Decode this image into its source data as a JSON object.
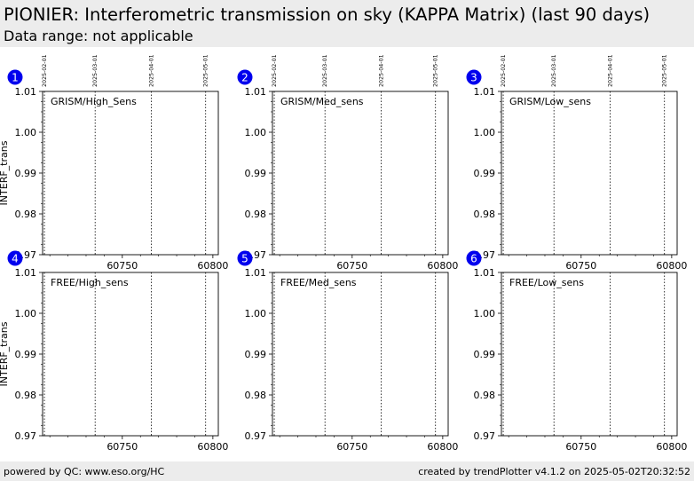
{
  "header": {
    "title": "PIONIER: Interferometric transmission on sky (KAPPA Matrix) (last 90 days)",
    "subtitle": "Data range: not applicable"
  },
  "footer": {
    "left": "powered by QC: www.eso.org/HC",
    "right": "created by trendPlotter v4.1.2 on 2025-05-02T20:32:52"
  },
  "colors": {
    "badge": "#0000ee",
    "header_bg": "#ececec",
    "date_line": "#000000"
  },
  "chart_data": [
    {
      "type": "scatter",
      "number": "1",
      "label": "GRISM/High_Sens",
      "ylabel": "INTERF_trans",
      "xlim": [
        60706,
        60803
      ],
      "ylim": [
        0.97,
        1.01
      ],
      "xticks": [
        60750,
        60800
      ],
      "yticks": [
        0.97,
        0.98,
        0.99,
        1.0,
        1.01
      ],
      "ytick_labels": [
        "0.97",
        "0.98",
        "0.99",
        "1.00",
        "1.01"
      ],
      "date_lines": [
        {
          "x": 60707,
          "label": "2025-02-01"
        },
        {
          "x": 60735,
          "label": "2025-03-01"
        },
        {
          "x": 60766,
          "label": "2025-04-01"
        },
        {
          "x": 60796,
          "label": "2025-05-01"
        }
      ],
      "series": []
    },
    {
      "type": "scatter",
      "number": "2",
      "label": "GRISM/Med_sens",
      "ylabel": "",
      "xlim": [
        60706,
        60803
      ],
      "ylim": [
        0.97,
        1.01
      ],
      "xticks": [
        60750,
        60800
      ],
      "yticks": [
        0.97,
        0.98,
        0.99,
        1.0,
        1.01
      ],
      "ytick_labels": [
        "0.97",
        "0.98",
        "0.99",
        "1.00",
        "1.01"
      ],
      "date_lines": [
        {
          "x": 60707,
          "label": "2025-02-01"
        },
        {
          "x": 60735,
          "label": "2025-03-01"
        },
        {
          "x": 60766,
          "label": "2025-04-01"
        },
        {
          "x": 60796,
          "label": "2025-05-01"
        }
      ],
      "series": []
    },
    {
      "type": "scatter",
      "number": "3",
      "label": "GRISM/Low_sens",
      "ylabel": "",
      "xlim": [
        60706,
        60803
      ],
      "ylim": [
        0.97,
        1.01
      ],
      "xticks": [
        60750,
        60800
      ],
      "yticks": [
        0.97,
        0.98,
        0.99,
        1.0,
        1.01
      ],
      "ytick_labels": [
        "0.97",
        "0.98",
        "0.99",
        "1.00",
        "1.01"
      ],
      "date_lines": [
        {
          "x": 60707,
          "label": "2025-02-01"
        },
        {
          "x": 60735,
          "label": "2025-03-01"
        },
        {
          "x": 60766,
          "label": "2025-04-01"
        },
        {
          "x": 60796,
          "label": "2025-05-01"
        }
      ],
      "series": []
    },
    {
      "type": "scatter",
      "number": "4",
      "label": "FREE/High_sens",
      "ylabel": "INTERF_trans",
      "xlim": [
        60706,
        60803
      ],
      "ylim": [
        0.97,
        1.01
      ],
      "xticks": [
        60750,
        60800
      ],
      "yticks": [
        0.97,
        0.98,
        0.99,
        1.0,
        1.01
      ],
      "ytick_labels": [
        "0.97",
        "0.98",
        "0.99",
        "1.00",
        "1.01"
      ],
      "date_lines": [
        {
          "x": 60707,
          "label": ""
        },
        {
          "x": 60735,
          "label": ""
        },
        {
          "x": 60766,
          "label": ""
        },
        {
          "x": 60796,
          "label": ""
        }
      ],
      "series": []
    },
    {
      "type": "scatter",
      "number": "5",
      "label": "FREE/Med_sens",
      "ylabel": "",
      "xlim": [
        60706,
        60803
      ],
      "ylim": [
        0.97,
        1.01
      ],
      "xticks": [
        60750,
        60800
      ],
      "yticks": [
        0.97,
        0.98,
        0.99,
        1.0,
        1.01
      ],
      "ytick_labels": [
        "0.97",
        "0.98",
        "0.99",
        "1.00",
        "1.01"
      ],
      "date_lines": [
        {
          "x": 60707,
          "label": ""
        },
        {
          "x": 60735,
          "label": ""
        },
        {
          "x": 60766,
          "label": ""
        },
        {
          "x": 60796,
          "label": ""
        }
      ],
      "series": []
    },
    {
      "type": "scatter",
      "number": "6",
      "label": "FREE/Low_sens",
      "ylabel": "",
      "xlim": [
        60706,
        60803
      ],
      "ylim": [
        0.97,
        1.01
      ],
      "xticks": [
        60750,
        60800
      ],
      "yticks": [
        0.97,
        0.98,
        0.99,
        1.0,
        1.01
      ],
      "ytick_labels": [
        "0.97",
        "0.98",
        "0.99",
        "1.00",
        "1.01"
      ],
      "date_lines": [
        {
          "x": 60707,
          "label": ""
        },
        {
          "x": 60735,
          "label": ""
        },
        {
          "x": 60766,
          "label": ""
        },
        {
          "x": 60796,
          "label": ""
        }
      ],
      "series": []
    }
  ]
}
